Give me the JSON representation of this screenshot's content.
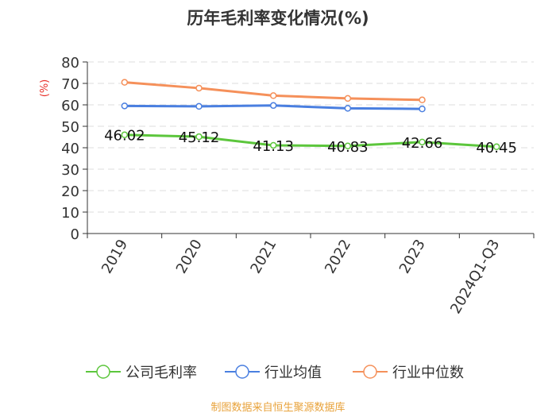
{
  "chart_data": {
    "type": "line",
    "title": "历年毛利率变化情况(%)",
    "ylabel": "(%)",
    "xlabel": "",
    "categories": [
      "2019",
      "2020",
      "2021",
      "2022",
      "2023",
      "2024Q1-Q3"
    ],
    "ylim": [
      0,
      80
    ],
    "yticks": [
      "0",
      "10",
      "20",
      "30",
      "40",
      "50",
      "60",
      "70",
      "80"
    ],
    "grid": true,
    "legend_position": "bottom",
    "series": [
      {
        "name": "公司毛利率",
        "color": "#5cc63c",
        "values": [
          46.02,
          45.12,
          41.13,
          40.83,
          42.66,
          40.45
        ],
        "labels": [
          "46.02",
          "45.12",
          "41.13",
          "40.83",
          "42.66",
          "40.45"
        ]
      },
      {
        "name": "行业均值",
        "color": "#4a7fe0",
        "values": [
          59.5,
          59.3,
          59.7,
          58.4,
          58.1,
          null
        ]
      },
      {
        "name": "行业中位数",
        "color": "#f5905a",
        "values": [
          70.5,
          67.8,
          64.3,
          63.0,
          62.3,
          null
        ]
      }
    ]
  },
  "source": "制图数据来自恒生聚源数据库",
  "colors": {
    "ylabel": "#e8312a",
    "source": "#e8a23a",
    "axis": "#333333",
    "grid": "#dddddd"
  }
}
